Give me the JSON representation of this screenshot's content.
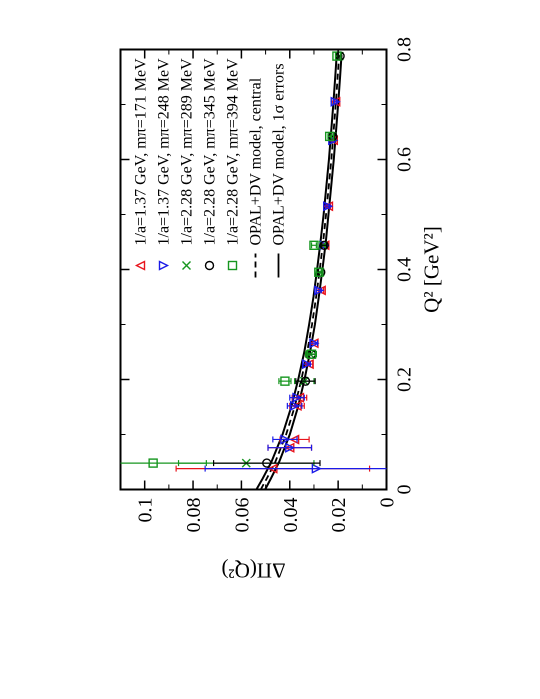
{
  "chart_data": {
    "type": "scatter",
    "xlabel": "Q² [GeV²]",
    "ylabel": "ΔΠ(Q²)",
    "xlim": [
      0,
      0.8
    ],
    "ylim": [
      0,
      0.11
    ],
    "x_ticks": [
      "0",
      "0.2",
      "0.4",
      "0.6",
      "0.8"
    ],
    "y_ticks": [
      "0",
      "0.02",
      "0.04",
      "0.06",
      "0.08",
      "0.1"
    ],
    "legend_placement": "top-right",
    "series": [
      {
        "name": "1/a=1.37 GeV, mπ=171 MeV",
        "marker": "triangle-up",
        "color": "#e8141c",
        "points": [
          {
            "x": 0.038,
            "y": 0.047,
            "err": 0.04
          },
          {
            "x": 0.076,
            "y": 0.04,
            "err": 0.009
          },
          {
            "x": 0.091,
            "y": 0.038,
            "err": 0.006
          },
          {
            "x": 0.152,
            "y": 0.037,
            "err": 0.003
          },
          {
            "x": 0.167,
            "y": 0.036,
            "err": 0.003
          },
          {
            "x": 0.228,
            "y": 0.032,
            "err": 0.0015
          },
          {
            "x": 0.266,
            "y": 0.03,
            "err": 0.0015
          },
          {
            "x": 0.362,
            "y": 0.027,
            "err": 0.001
          },
          {
            "x": 0.444,
            "y": 0.0255,
            "err": 0.001
          },
          {
            "x": 0.515,
            "y": 0.024,
            "err": 0.0008
          },
          {
            "x": 0.635,
            "y": 0.022,
            "err": 0.0007
          },
          {
            "x": 0.705,
            "y": 0.021,
            "err": 0.0007
          }
        ]
      },
      {
        "name": "1/a=1.37 GeV, mπ=248 MeV",
        "marker": "triangle-down",
        "color": "#1a1ae8",
        "points": [
          {
            "x": 0.038,
            "y": 0.029,
            "err": 0.046
          },
          {
            "x": 0.076,
            "y": 0.04,
            "err": 0.009
          },
          {
            "x": 0.091,
            "y": 0.042,
            "err": 0.005
          },
          {
            "x": 0.152,
            "y": 0.038,
            "err": 0.003
          },
          {
            "x": 0.167,
            "y": 0.037,
            "err": 0.003
          },
          {
            "x": 0.228,
            "y": 0.033,
            "err": 0.0015
          },
          {
            "x": 0.266,
            "y": 0.03,
            "err": 0.0015
          },
          {
            "x": 0.362,
            "y": 0.028,
            "err": 0.001
          },
          {
            "x": 0.444,
            "y": 0.0258,
            "err": 0.001
          },
          {
            "x": 0.515,
            "y": 0.0243,
            "err": 0.0008
          },
          {
            "x": 0.635,
            "y": 0.0222,
            "err": 0.0007
          },
          {
            "x": 0.705,
            "y": 0.0212,
            "err": 0.0007
          }
        ]
      },
      {
        "name": "1/a=2.28 GeV, mπ=289 MeV",
        "marker": "x",
        "color": "#16961f",
        "points": [
          {
            "x": 0.048,
            "y": 0.058,
            "err": 0.028
          },
          {
            "x": 0.197,
            "y": 0.034,
            "err": 0.004
          },
          {
            "x": 0.246,
            "y": 0.0315,
            "err": 0.002
          },
          {
            "x": 0.395,
            "y": 0.0275,
            "err": 0.001
          },
          {
            "x": 0.444,
            "y": 0.0262,
            "err": 0.001
          },
          {
            "x": 0.642,
            "y": 0.0225,
            "err": 0.0007
          },
          {
            "x": 0.788,
            "y": 0.0195,
            "err": 0.0006
          }
        ]
      },
      {
        "name": "1/a=2.28 GeV, mπ=345 MeV",
        "marker": "circle",
        "color": "#000000",
        "points": [
          {
            "x": 0.048,
            "y": 0.0495,
            "err": 0.022
          },
          {
            "x": 0.197,
            "y": 0.0335,
            "err": 0.004
          },
          {
            "x": 0.246,
            "y": 0.031,
            "err": 0.002
          },
          {
            "x": 0.395,
            "y": 0.0272,
            "err": 0.001
          },
          {
            "x": 0.444,
            "y": 0.0258,
            "err": 0.001
          },
          {
            "x": 0.642,
            "y": 0.0222,
            "err": 0.0007
          },
          {
            "x": 0.788,
            "y": 0.0192,
            "err": 0.0006
          }
        ]
      },
      {
        "name": "1/a=2.28 GeV, mπ=394 MeV",
        "marker": "square",
        "color": "#16961f",
        "points": [
          {
            "x": 0.048,
            "y": 0.0965,
            "err": 0.022
          },
          {
            "x": 0.197,
            "y": 0.042,
            "err": 0.0025
          },
          {
            "x": 0.246,
            "y": 0.031,
            "err": 0.002
          },
          {
            "x": 0.395,
            "y": 0.028,
            "err": 0.001
          },
          {
            "x": 0.444,
            "y": 0.03,
            "err": 0.001
          },
          {
            "x": 0.642,
            "y": 0.0235,
            "err": 0.0007
          },
          {
            "x": 0.788,
            "y": 0.0205,
            "err": 0.0006
          }
        ]
      }
    ],
    "model": {
      "central_name": "OPAL+DV model, central",
      "errors_name": "OPAL+DV model, 1σ errors",
      "x": [
        0.0,
        0.02,
        0.05,
        0.1,
        0.15,
        0.2,
        0.25,
        0.3,
        0.35,
        0.4,
        0.45,
        0.5,
        0.55,
        0.6,
        0.65,
        0.7,
        0.75,
        0.79
      ],
      "central": [
        0.052,
        0.0495,
        0.046,
        0.0415,
        0.038,
        0.0352,
        0.0328,
        0.0308,
        0.0291,
        0.0276,
        0.0262,
        0.025,
        0.0239,
        0.0228,
        0.0219,
        0.021,
        0.0202,
        0.0196
      ],
      "band_halfwidth": [
        0.0018,
        0.0017,
        0.0016,
        0.0015,
        0.0014,
        0.0013,
        0.0012,
        0.0012,
        0.0011,
        0.0011,
        0.0011,
        0.001,
        0.001,
        0.001,
        0.001,
        0.001,
        0.001,
        0.001
      ]
    }
  }
}
